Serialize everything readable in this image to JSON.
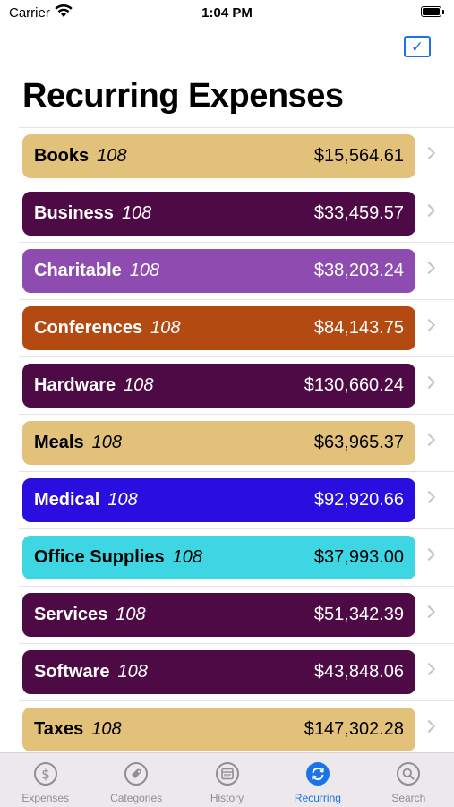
{
  "status_bar": {
    "carrier": "Carrier",
    "time": "1:04 PM"
  },
  "nav": {
    "title": "Recurring Expenses",
    "edit_icon": "checkbox-icon",
    "accent_color": "#1a73e8"
  },
  "categories": [
    {
      "name": "Books",
      "count": "108",
      "amount": "$15,564.61",
      "color": "#e2c17a",
      "text_color": "#000000"
    },
    {
      "name": "Business",
      "count": "108",
      "amount": "$33,459.57",
      "color": "#4e0a45",
      "text_color": "#ffffff"
    },
    {
      "name": "Charitable",
      "count": "108",
      "amount": "$38,203.24",
      "color": "#8e4cb0",
      "text_color": "#ffffff"
    },
    {
      "name": "Conferences",
      "count": "108",
      "amount": "$84,143.75",
      "color": "#b24a12",
      "text_color": "#ffffff"
    },
    {
      "name": "Hardware",
      "count": "108",
      "amount": "$130,660.24",
      "color": "#4e0a45",
      "text_color": "#ffffff"
    },
    {
      "name": "Meals",
      "count": "108",
      "amount": "$63,965.37",
      "color": "#e2c17a",
      "text_color": "#000000"
    },
    {
      "name": "Medical",
      "count": "108",
      "amount": "$92,920.66",
      "color": "#2a0ee0",
      "text_color": "#ffffff"
    },
    {
      "name": "Office Supplies",
      "count": "108",
      "amount": "$37,993.00",
      "color": "#3fd6e4",
      "text_color": "#000000"
    },
    {
      "name": "Services",
      "count": "108",
      "amount": "$51,342.39",
      "color": "#4e0a45",
      "text_color": "#ffffff"
    },
    {
      "name": "Software",
      "count": "108",
      "amount": "$43,848.06",
      "color": "#4e0a45",
      "text_color": "#ffffff"
    },
    {
      "name": "Taxes",
      "count": "108",
      "amount": "$147,302.28",
      "color": "#e2c17a",
      "text_color": "#000000"
    }
  ],
  "tab_bar": {
    "tabs": [
      {
        "label": "Expenses",
        "icon": "dollar-circle-icon",
        "active": false
      },
      {
        "label": "Categories",
        "icon": "tag-icon",
        "active": false
      },
      {
        "label": "History",
        "icon": "history-icon",
        "active": false
      },
      {
        "label": "Recurring",
        "icon": "recurring-icon",
        "active": true
      },
      {
        "label": "Search",
        "icon": "search-icon",
        "active": false
      }
    ],
    "active_color": "#1a73e8",
    "inactive_color": "#8e8e93"
  }
}
